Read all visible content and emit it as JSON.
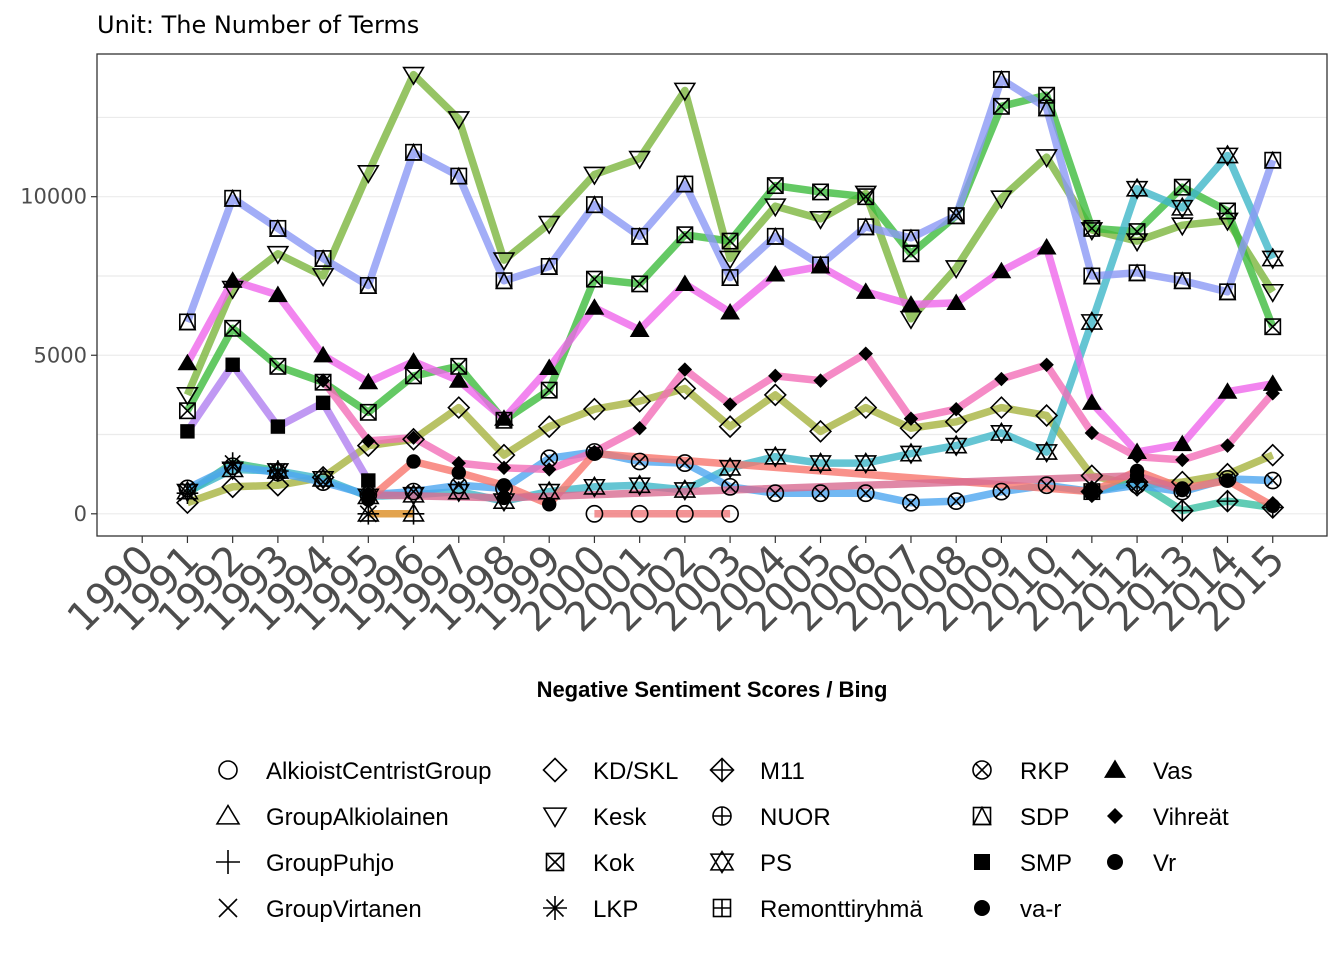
{
  "chart_data": {
    "type": "line",
    "subtitle": "Unit: The Number of Terms",
    "xlabel": "Negative Sentiment Scores / Bing",
    "ylabel": "",
    "x_ticks": [
      "1990",
      "1991",
      "1992",
      "1993",
      "1994",
      "1995",
      "1996",
      "1997",
      "1998",
      "1999",
      "2000",
      "2001",
      "2002",
      "2003",
      "2004",
      "2005",
      "2006",
      "2007",
      "2008",
      "2009",
      "2010",
      "2011",
      "2012",
      "2013",
      "2014",
      "2015"
    ],
    "y_ticks": [
      0,
      5000,
      10000
    ],
    "ylim": [
      -700,
      14500
    ],
    "xlim": [
      1989.0,
      2016.2
    ],
    "grid": true,
    "legend_position": "bottom",
    "series": [
      {
        "name": "AlkioistCentristGroup",
        "shape": "circle-open",
        "color": "#F0787A",
        "points": [
          [
            2000,
            0
          ],
          [
            2001,
            0
          ],
          [
            2002,
            0
          ],
          [
            2003,
            0
          ]
        ]
      },
      {
        "name": "GroupAlkiolainen",
        "shape": "triangle-open",
        "color": "#BF9C40",
        "points": [
          [
            1995,
            0
          ],
          [
            1996,
            0
          ]
        ]
      },
      {
        "name": "GroupPuhjo",
        "shape": "plus",
        "color": "#E9A048",
        "points": [
          [
            1995,
            0
          ],
          [
            1996,
            0
          ]
        ]
      },
      {
        "name": "GroupVirtanen",
        "shape": "x",
        "color": "#A3A53F",
        "points": [
          [
            1995,
            0
          ]
        ]
      },
      {
        "name": "KD/SKL",
        "shape": "diamond-open",
        "color": "#A6B33F",
        "points": [
          [
            1991,
            350
          ],
          [
            1992,
            850
          ],
          [
            1993,
            900
          ],
          [
            1994,
            1150
          ],
          [
            1995,
            2150
          ],
          [
            1996,
            2350
          ],
          [
            1997,
            3350
          ],
          [
            1998,
            1850
          ],
          [
            1999,
            2750
          ],
          [
            2000,
            3300
          ],
          [
            2001,
            3550
          ],
          [
            2002,
            3950
          ],
          [
            2003,
            2750
          ],
          [
            2004,
            3750
          ],
          [
            2005,
            2600
          ],
          [
            2006,
            3350
          ],
          [
            2007,
            2700
          ],
          [
            2008,
            2900
          ],
          [
            2009,
            3350
          ],
          [
            2010,
            3100
          ],
          [
            2011,
            1200
          ],
          [
            2012,
            900
          ],
          [
            2013,
            1000
          ],
          [
            2014,
            1250
          ],
          [
            2015,
            1850
          ]
        ]
      },
      {
        "name": "Kesk",
        "shape": "triangle-down-open",
        "color": "#7CB53D",
        "points": [
          [
            1991,
            3750
          ],
          [
            1992,
            7100
          ],
          [
            1993,
            8200
          ],
          [
            1994,
            7500
          ],
          [
            1995,
            10750
          ],
          [
            1996,
            13850
          ],
          [
            1997,
            12450
          ],
          [
            1998,
            8000
          ],
          [
            1999,
            9150
          ],
          [
            2000,
            10700
          ],
          [
            2001,
            11200
          ],
          [
            2002,
            13350
          ],
          [
            2003,
            8050
          ],
          [
            2004,
            9700
          ],
          [
            2005,
            9300
          ],
          [
            2006,
            10100
          ],
          [
            2007,
            6150
          ],
          [
            2008,
            7750
          ],
          [
            2009,
            9950
          ],
          [
            2010,
            11250
          ],
          [
            2011,
            8950
          ],
          [
            2012,
            8600
          ],
          [
            2013,
            9100
          ],
          [
            2014,
            9250
          ],
          [
            2015,
            7000
          ]
        ]
      },
      {
        "name": "Kok",
        "shape": "square-x",
        "color": "#3DBB3D",
        "points": [
          [
            1991,
            3250
          ],
          [
            1992,
            5850
          ],
          [
            1993,
            4650
          ],
          [
            1994,
            4150
          ],
          [
            1995,
            3200
          ],
          [
            1996,
            4350
          ],
          [
            1997,
            4650
          ],
          [
            1998,
            2950
          ],
          [
            1999,
            3900
          ],
          [
            2000,
            7400
          ],
          [
            2001,
            7250
          ],
          [
            2002,
            8800
          ],
          [
            2003,
            8600
          ],
          [
            2004,
            10350
          ],
          [
            2005,
            10150
          ],
          [
            2006,
            10000
          ],
          [
            2007,
            8200
          ],
          [
            2008,
            9400
          ],
          [
            2009,
            12850
          ],
          [
            2010,
            13200
          ],
          [
            2011,
            9000
          ],
          [
            2012,
            8900
          ],
          [
            2013,
            10300
          ],
          [
            2014,
            9550
          ],
          [
            2015,
            5900
          ]
        ]
      },
      {
        "name": "LKP",
        "shape": "asterisk",
        "color": "#3FBF7F",
        "points": [
          [
            1991,
            650
          ],
          [
            1992,
            1600
          ],
          [
            1993,
            1350
          ]
        ]
      },
      {
        "name": "M11",
        "shape": "diamond-plus",
        "color": "#3ABFA3",
        "points": [
          [
            2011,
            700
          ],
          [
            2012,
            1000
          ],
          [
            2013,
            100
          ],
          [
            2014,
            400
          ],
          [
            2015,
            200
          ]
        ]
      },
      {
        "name": "NUOR",
        "shape": "circle-plus",
        "color": "#3DBBAA",
        "points": [
          [
            2011,
            700
          ]
        ]
      },
      {
        "name": "PS",
        "shape": "star-open",
        "color": "#3FB6C8",
        "points": [
          [
            1991,
            700
          ],
          [
            1992,
            1400
          ],
          [
            1993,
            1350
          ],
          [
            1994,
            1100
          ],
          [
            1995,
            550
          ],
          [
            1996,
            600
          ],
          [
            1997,
            700
          ],
          [
            1998,
            400
          ],
          [
            1999,
            700
          ],
          [
            2000,
            850
          ],
          [
            2001,
            900
          ],
          [
            2002,
            750
          ],
          [
            2003,
            1450
          ],
          [
            2004,
            1800
          ],
          [
            2005,
            1600
          ],
          [
            2006,
            1600
          ],
          [
            2007,
            1900
          ],
          [
            2008,
            2150
          ],
          [
            2009,
            2550
          ],
          [
            2010,
            1950
          ],
          [
            2011,
            6050
          ],
          [
            2012,
            10250
          ],
          [
            2013,
            9650
          ],
          [
            2014,
            11300
          ],
          [
            2015,
            8050
          ]
        ]
      },
      {
        "name": "Remonttiryhmä",
        "shape": "square-plus",
        "color": "#39ADD5",
        "points": [
          [
            2011,
            700
          ]
        ]
      },
      {
        "name": "RKP",
        "shape": "circle-x",
        "color": "#4DA6F0",
        "points": [
          [
            1991,
            800
          ],
          [
            1992,
            1500
          ],
          [
            1993,
            1300
          ],
          [
            1994,
            1000
          ],
          [
            1995,
            600
          ],
          [
            1996,
            700
          ],
          [
            1997,
            900
          ],
          [
            1998,
            800
          ],
          [
            1999,
            1750
          ],
          [
            2000,
            1950
          ],
          [
            2001,
            1650
          ],
          [
            2002,
            1600
          ],
          [
            2003,
            850
          ],
          [
            2004,
            650
          ],
          [
            2005,
            650
          ],
          [
            2006,
            650
          ],
          [
            2007,
            350
          ],
          [
            2008,
            400
          ],
          [
            2009,
            700
          ],
          [
            2010,
            900
          ],
          [
            2011,
            700
          ],
          [
            2012,
            900
          ],
          [
            2013,
            700
          ],
          [
            2014,
            1100
          ],
          [
            2015,
            1050
          ]
        ]
      },
      {
        "name": "SDP",
        "shape": "square-triangle",
        "color": "#8B98F5",
        "points": [
          [
            1991,
            6050
          ],
          [
            1992,
            9950
          ],
          [
            1993,
            9000
          ],
          [
            1994,
            8050
          ],
          [
            1995,
            7200
          ],
          [
            1996,
            11400
          ],
          [
            1997,
            10650
          ],
          [
            1998,
            7350
          ],
          [
            1999,
            7800
          ],
          [
            2000,
            9750
          ],
          [
            2001,
            8750
          ],
          [
            2002,
            10400
          ],
          [
            2003,
            7450
          ],
          [
            2004,
            8750
          ],
          [
            2005,
            7850
          ],
          [
            2006,
            9050
          ],
          [
            2007,
            8700
          ],
          [
            2008,
            9400
          ],
          [
            2009,
            13700
          ],
          [
            2010,
            12800
          ],
          [
            2011,
            7500
          ],
          [
            2012,
            7600
          ],
          [
            2013,
            7350
          ],
          [
            2014,
            7000
          ],
          [
            2015,
            11150
          ]
        ]
      },
      {
        "name": "SMP",
        "shape": "square-filled",
        "color": "#B07FF0",
        "points": [
          [
            1991,
            2600
          ],
          [
            1992,
            4700
          ],
          [
            1993,
            2750
          ],
          [
            1994,
            3500
          ],
          [
            1995,
            1050
          ]
        ]
      },
      {
        "name": "Vas",
        "shape": "triangle-filled",
        "color": "#EF67EB",
        "points": [
          [
            1991,
            4750
          ],
          [
            1992,
            7350
          ],
          [
            1993,
            6900
          ],
          [
            1994,
            5000
          ],
          [
            1995,
            4150
          ],
          [
            1996,
            4800
          ],
          [
            1997,
            4200
          ],
          [
            1998,
            3000
          ],
          [
            1999,
            4600
          ],
          [
            2000,
            6500
          ],
          [
            2001,
            5800
          ],
          [
            2002,
            7250
          ],
          [
            2003,
            6350
          ],
          [
            2004,
            7550
          ],
          [
            2005,
            7800
          ],
          [
            2006,
            7000
          ],
          [
            2007,
            6600
          ],
          [
            2008,
            6650
          ],
          [
            2009,
            7650
          ],
          [
            2010,
            8400
          ],
          [
            2011,
            3500
          ],
          [
            2012,
            1950
          ],
          [
            2013,
            2200
          ],
          [
            2014,
            3850
          ],
          [
            2015,
            4100
          ]
        ]
      },
      {
        "name": "Vihreät",
        "shape": "diamond-filled",
        "color": "#F36EB8",
        "points": [
          [
            1994,
            4200
          ],
          [
            1995,
            2300
          ],
          [
            1996,
            2400
          ],
          [
            1997,
            1600
          ],
          [
            1998,
            1450
          ],
          [
            1999,
            1400
          ],
          [
            2000,
            1950
          ],
          [
            2001,
            2700
          ],
          [
            2002,
            4550
          ],
          [
            2003,
            3450
          ],
          [
            2004,
            4350
          ],
          [
            2005,
            4200
          ],
          [
            2006,
            5050
          ],
          [
            2007,
            3000
          ],
          [
            2008,
            3300
          ],
          [
            2009,
            4250
          ],
          [
            2010,
            4700
          ],
          [
            2011,
            2550
          ],
          [
            2012,
            1800
          ],
          [
            2013,
            1700
          ],
          [
            2014,
            2150
          ],
          [
            2015,
            3800
          ]
        ]
      },
      {
        "name": "Vr",
        "shape": "circle-filled",
        "color": "#F8766D",
        "points": [
          [
            1995,
            450
          ],
          [
            1996,
            1650
          ],
          [
            1997,
            1300
          ],
          [
            1998,
            900
          ],
          [
            1999,
            300
          ],
          [
            2000,
            1900
          ],
          [
            2011,
            700
          ],
          [
            2012,
            1350
          ],
          [
            2013,
            800
          ],
          [
            2014,
            1050
          ],
          [
            2015,
            250
          ]
        ]
      },
      {
        "name": "va-r",
        "shape": "circle-filled",
        "color": "#D86C91",
        "points": [
          [
            1995,
            600
          ],
          [
            1998,
            500
          ],
          [
            2012,
            1200
          ],
          [
            2013,
            750
          ]
        ]
      }
    ]
  }
}
